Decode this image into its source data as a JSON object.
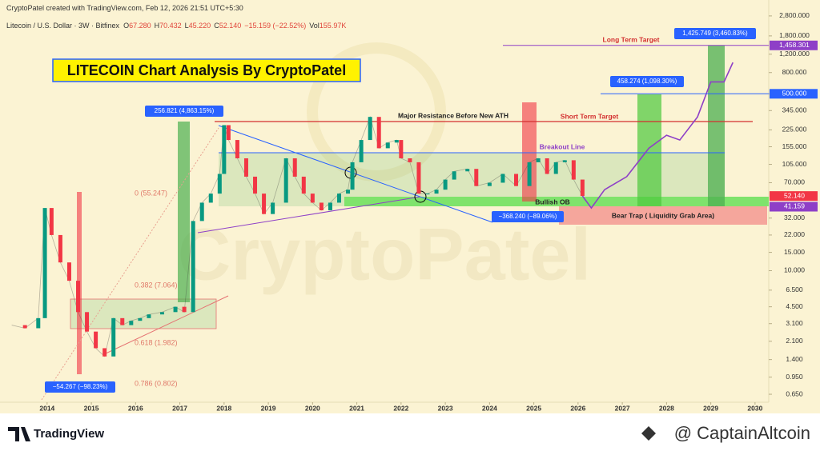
{
  "header": {
    "credit": "CryptoPatel created with TradingView.com, Feb 12, 2026 21:51 UTC+5:30",
    "symbol": "Litecoin / U.S. Dollar · 3W · Bitfinex",
    "quote": [
      {
        "key": "O",
        "value": "67.280"
      },
      {
        "key": "H",
        "value": "70.432"
      },
      {
        "key": "L",
        "value": "45.220"
      },
      {
        "key": "C",
        "value": "52.140"
      },
      {
        "key": "",
        "value": "−15.159 (−22.52%)"
      },
      {
        "key": "Vol",
        "value": "155.97K"
      }
    ]
  },
  "chart_data": {
    "type": "line",
    "title": "LITECOIN Chart Analysis By CryptoPatel",
    "watermark": "CryptoPatel",
    "log_scale": true,
    "grid": false,
    "xlim": [
      2013.08,
      2030.31
    ],
    "xticks": [
      2014,
      2015,
      2016,
      2017,
      2018,
      2019,
      2020,
      2021,
      2022,
      2023,
      2024,
      2025,
      2026,
      2027,
      2028,
      2029,
      2030
    ],
    "ylim": [
      0.545,
      3220
    ],
    "yticks": [
      {
        "value": 2800,
        "label": "2,800.000"
      },
      {
        "value": 1800,
        "label": "1,800.000"
      },
      {
        "value": 1200,
        "label": "1,200.000"
      },
      {
        "value": 800,
        "label": "800.000"
      },
      {
        "value": 500,
        "label": "500.000"
      },
      {
        "value": 345,
        "label": "345.000"
      },
      {
        "value": 225,
        "label": "225.000"
      },
      {
        "value": 155,
        "label": "155.000"
      },
      {
        "value": 105,
        "label": "105.000"
      },
      {
        "value": 70,
        "label": "70.000"
      },
      {
        "value": 32,
        "label": "32.000"
      },
      {
        "value": 22,
        "label": "22.000"
      },
      {
        "value": 15,
        "label": "15.000"
      },
      {
        "value": 10,
        "label": "10.000"
      },
      {
        "value": 6.5,
        "label": "6.500"
      },
      {
        "value": 4.5,
        "label": "4.500"
      },
      {
        "value": 3.1,
        "label": "3.100"
      },
      {
        "value": 2.1,
        "label": "2.100"
      },
      {
        "value": 1.4,
        "label": "1.400"
      },
      {
        "value": 0.95,
        "label": "0.950"
      },
      {
        "value": 0.65,
        "label": "0.650"
      }
    ],
    "series": [
      {
        "style": "bars",
        "color": "#f23645",
        "up_color": "#089981",
        "x": [
          2013.2,
          2013.5,
          2013.8,
          2013.95,
          2014.1,
          2014.3,
          2014.5,
          2014.7,
          2014.9,
          2015.1,
          2015.3,
          2015.5,
          2015.7,
          2015.9,
          2016.1,
          2016.3,
          2016.6,
          2016.9,
          2017.1,
          2017.3,
          2017.5,
          2017.7,
          2017.9,
          2018.0,
          2018.1,
          2018.3,
          2018.5,
          2018.7,
          2018.9,
          2019.1,
          2019.4,
          2019.6,
          2019.8,
          2020.0,
          2020.2,
          2020.4,
          2020.6,
          2020.8,
          2020.9,
          2021.1,
          2021.3,
          2021.5,
          2021.7,
          2021.9,
          2022.0,
          2022.2,
          2022.4,
          2022.6,
          2022.8,
          2023.0,
          2023.2,
          2023.5,
          2023.7,
          2024.0,
          2024.3,
          2024.6,
          2024.9,
          2025.1,
          2025.3,
          2025.5,
          2025.7,
          2025.9,
          2026.1
        ],
        "values": [
          3,
          2.8,
          3.5,
          40,
          22,
          12,
          8,
          4,
          2.6,
          1.8,
          1.5,
          3.5,
          3,
          3.3,
          3.5,
          3.8,
          4,
          4.5,
          4,
          30,
          45,
          55,
          85,
          250,
          180,
          120,
          80,
          55,
          35,
          45,
          120,
          80,
          55,
          45,
          38,
          45,
          55,
          60,
          110,
          180,
          300,
          150,
          170,
          180,
          120,
          110,
          55,
          55,
          60,
          75,
          90,
          95,
          65,
          70,
          85,
          65,
          110,
          120,
          85,
          110,
          115,
          75,
          52.14
        ]
      },
      {
        "style": "line",
        "color": "#8e3fc7",
        "x": [
          2026.1,
          2026.3,
          2026.6,
          2027.1,
          2027.6,
          2028.0,
          2028.3,
          2028.7,
          2029.0,
          2029.3,
          2029.5
        ],
        "values": [
          52.14,
          40,
          60,
          80,
          150,
          200,
          180,
          300,
          650,
          650,
          1000
        ]
      }
    ],
    "price_labels": [
      {
        "value": 1458.301,
        "label": "1,458.301",
        "color": "#8e3fc7"
      },
      {
        "value": 500,
        "label": "500.000",
        "color": "#2962ff"
      },
      {
        "value": 52.14,
        "label": "52.140",
        "color": "#f23645"
      },
      {
        "value": 41.159,
        "label": "41.159",
        "color": "#8e3fc7"
      }
    ],
    "annotations": {
      "resistance": "Major Resistance Before New ATH",
      "short_target": "Short Term Target",
      "long_target": "Long Term Target",
      "breakout": "Breakout Line",
      "bullish_ob": "Bullish OB",
      "bear_trap": "Bear Trap ( Liquidity Grab Area)"
    },
    "measures": [
      "256.821 (4,863.15%)",
      "−54.267 (−98.23%)",
      "−368.240 (−89.06%)",
      "458.274 (1,098.30%)",
      "1,425.749 (3,460.83%)"
    ],
    "fib_labels": [
      "0 (55.247)",
      "0.382 (7.064)",
      "0.618 (1.982)",
      "0.786 (0.802)"
    ]
  },
  "footer": {
    "brand": "TradingView",
    "credit": "@ CaptainAltcoin"
  }
}
